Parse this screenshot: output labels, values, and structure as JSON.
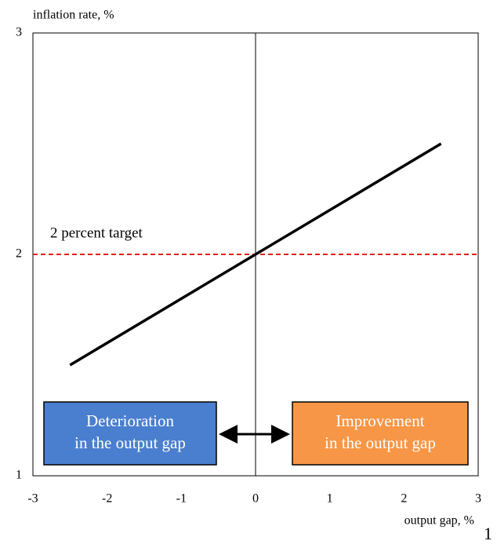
{
  "chart_data": {
    "type": "line",
    "x_label": "output gap, %",
    "y_label": "inflation rate, %",
    "x": [
      -2.5,
      2.5
    ],
    "values": [
      1.5,
      2.5
    ],
    "color": "#000000",
    "xlim": [
      -3,
      3
    ],
    "xticks": [
      -3,
      -2,
      -1,
      0,
      1,
      2,
      3
    ],
    "ylim": [
      1,
      3
    ],
    "yticks": [
      1,
      2,
      3
    ],
    "grid": false,
    "reference_line": {
      "value": 2,
      "label": "2 percent target",
      "color": "#e02020"
    },
    "annotations": [
      {
        "lines": [
          "Deterioration",
          "in the output gap"
        ],
        "color": "#4a7fcf"
      },
      {
        "lines": [
          "Improvement",
          "in the output gap"
        ],
        "color": "#f79646"
      }
    ]
  },
  "page_number": "1"
}
